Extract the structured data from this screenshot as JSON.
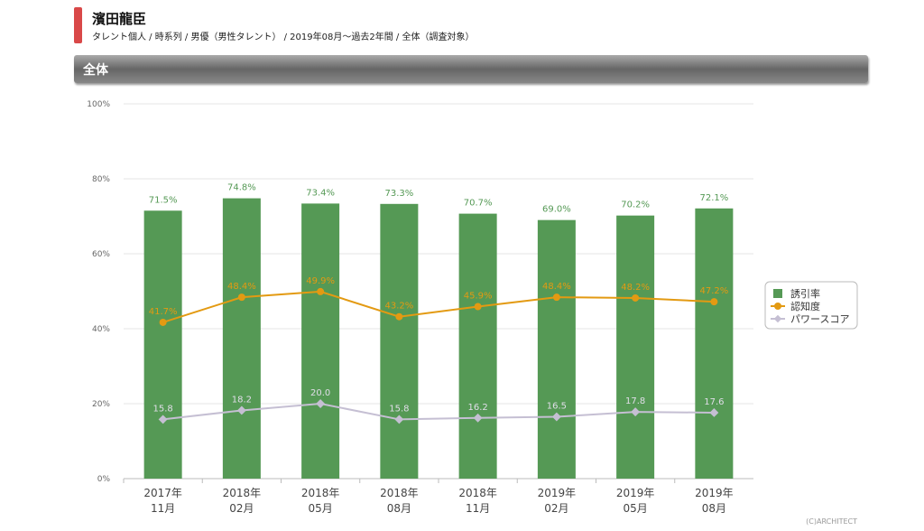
{
  "header": {
    "title": "濱田龍臣",
    "subtitle": "タレント個人 / 時系列 / 男優（男性タレント） / 2019年08月～過去2年間 / 全体（調査対象）"
  },
  "section": {
    "label": "全体"
  },
  "copyright": "(C)ARCHITECT",
  "chart_data": {
    "type": "bar",
    "categories": [
      [
        "2017年",
        "11月"
      ],
      [
        "2018年",
        "02月"
      ],
      [
        "2018年",
        "05月"
      ],
      [
        "2018年",
        "08月"
      ],
      [
        "2018年",
        "11月"
      ],
      [
        "2019年",
        "02月"
      ],
      [
        "2019年",
        "05月"
      ],
      [
        "2019年",
        "08月"
      ]
    ],
    "ylim": [
      0,
      100
    ],
    "yticks": [
      "0%",
      "20%",
      "40%",
      "60%",
      "80%",
      "100%"
    ],
    "series": [
      {
        "name": "誘引率",
        "type": "bar",
        "color": "#559955",
        "values": [
          71.5,
          74.8,
          73.4,
          73.3,
          70.7,
          69.0,
          70.2,
          72.1
        ],
        "labels": [
          "71.5%",
          "74.8%",
          "73.4%",
          "73.3%",
          "70.7%",
          "69.0%",
          "70.2%",
          "72.1%"
        ]
      },
      {
        "name": "認知度",
        "type": "line",
        "color": "#e39a12",
        "values": [
          41.7,
          48.4,
          49.9,
          43.2,
          45.9,
          48.4,
          48.2,
          47.2
        ],
        "labels": [
          "41.7%",
          "48.4%",
          "49.9%",
          "43.2%",
          "45.9%",
          "48.4%",
          "48.2%",
          "47.2%"
        ]
      },
      {
        "name": "パワースコア",
        "type": "line",
        "color": "#c5bfd3",
        "values": [
          15.8,
          18.2,
          20.0,
          15.8,
          16.2,
          16.5,
          17.8,
          17.6
        ],
        "labels": [
          "15.8",
          "18.2",
          "20.0",
          "15.8",
          "16.2",
          "16.5",
          "17.8",
          "17.6"
        ]
      }
    ],
    "legend": "right"
  }
}
